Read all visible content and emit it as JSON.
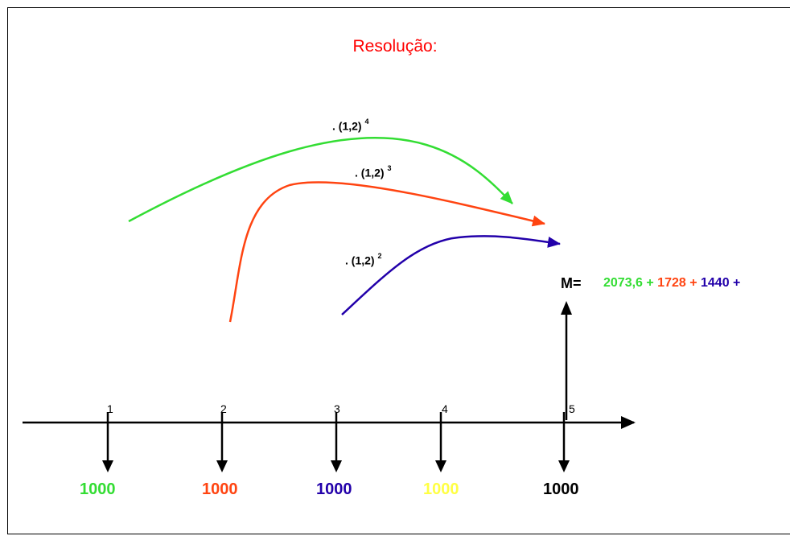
{
  "title": "Resolução:",
  "factors": [
    {
      "base": ". (1,2)",
      "exp": "4",
      "color": "#33dd33"
    },
    {
      "base": ". (1,2)",
      "exp": "3",
      "color": "#ff4411"
    },
    {
      "base": ". (1,2)",
      "exp": "2",
      "color": "#2200aa"
    }
  ],
  "ticks": [
    "1",
    "2",
    "3",
    "4",
    "5"
  ],
  "amounts": [
    {
      "value": "1000",
      "color": "#33dd33"
    },
    {
      "value": "1000",
      "color": "#ff4411"
    },
    {
      "value": "1000",
      "color": "#2200aa"
    },
    {
      "value": "1000",
      "color": "#ffff44"
    },
    {
      "value": "1000",
      "color": "#000000"
    }
  ],
  "m_label": "M=",
  "sum_terms": [
    {
      "text": "2073,6 + ",
      "color": "#33dd33"
    },
    {
      "text": "1728 + ",
      "color": "#ff4411"
    },
    {
      "text": "1440 +",
      "color": "#2200aa"
    }
  ]
}
